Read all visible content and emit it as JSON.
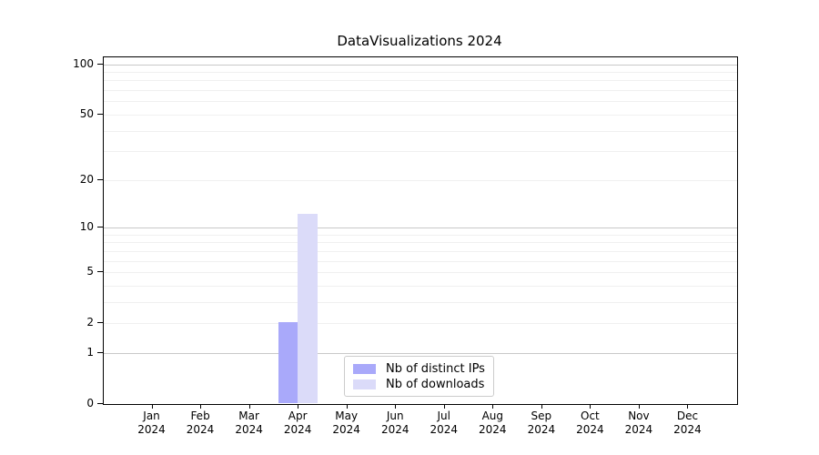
{
  "chart_data": {
    "type": "bar",
    "title": "DataVisualizations 2024",
    "categories": [
      "Jan",
      "Feb",
      "Mar",
      "Apr",
      "May",
      "Jun",
      "Jul",
      "Aug",
      "Sep",
      "Oct",
      "Nov",
      "Dec"
    ],
    "x_year_label": "2024",
    "series": [
      {
        "name": "Nb of distinct IPs",
        "color": "#a9a9fa",
        "values": [
          0,
          0,
          0,
          2,
          0,
          0,
          0,
          0,
          0,
          0,
          0,
          0
        ]
      },
      {
        "name": "Nb of downloads",
        "color": "#dbdbf9",
        "values": [
          0,
          0,
          0,
          12,
          0,
          0,
          0,
          0,
          0,
          0,
          0,
          0
        ]
      }
    ],
    "yscale": "log1p",
    "ylim": [
      0,
      110
    ],
    "y_tick_values": [
      0,
      1,
      2,
      5,
      10,
      20,
      50,
      100
    ],
    "y_tick_labels": [
      "0",
      "1",
      "2",
      "5",
      "10",
      "20",
      "50",
      "100"
    ],
    "y_major_gridlines": [
      1,
      10,
      100
    ],
    "y_minor_gridlines": [
      2,
      3,
      4,
      5,
      6,
      7,
      8,
      9,
      20,
      30,
      40,
      50,
      60,
      70,
      80,
      90
    ],
    "grid": true,
    "legend_position": "lower center",
    "xlabel": "",
    "ylabel": ""
  }
}
